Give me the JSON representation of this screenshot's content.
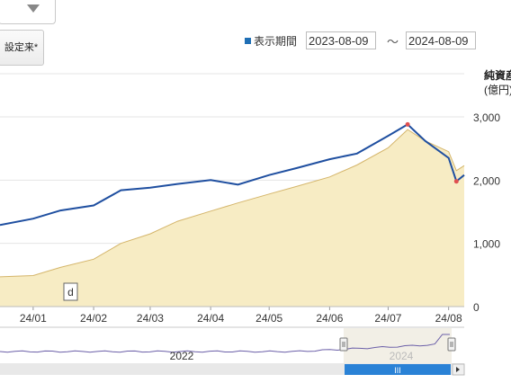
{
  "controls": {
    "dropdown_icon": "triangle-down-icon",
    "since_button": "設定来*",
    "range_label": "表示期間",
    "range_from": "2023-08-09",
    "range_tilde": "～",
    "range_to": "2024-08-09",
    "legend_color": "#1f6fb5"
  },
  "flag": {
    "label": "d"
  },
  "navigator": {
    "label_2022": "2022",
    "label_2024": "2024",
    "handle_grip": "III"
  },
  "chart_data": {
    "type": "line",
    "x": [
      "2023-12-15",
      "2024-01-01",
      "2024-01-15",
      "2024-02-01",
      "2024-02-15",
      "2024-03-01",
      "2024-03-15",
      "2024-04-01",
      "2024-04-15",
      "2024-05-01",
      "2024-05-15",
      "2024-06-01",
      "2024-06-15",
      "2024-07-01",
      "2024-07-11",
      "2024-07-20",
      "2024-08-01",
      "2024-08-05",
      "2024-08-09"
    ],
    "series": [
      {
        "axis": "left",
        "color": "#1f4fa0",
        "values": [
          null,
          null,
          null,
          null,
          null,
          null,
          null,
          null,
          null,
          null,
          null,
          null,
          null,
          null,
          null,
          null,
          null,
          null,
          null
        ]
      },
      {
        "name": "",
        "kind": "area",
        "axis": "right",
        "color": "#d4b56a",
        "fill": "#f7ecc4",
        "values": [
          470,
          490,
          620,
          750,
          1000,
          1150,
          1350,
          1510,
          1640,
          1780,
          1900,
          2050,
          2240,
          2510,
          2800,
          2620,
          2450,
          2150,
          2230
        ]
      }
    ],
    "nav_line_color": "#6b5fa8",
    "nav_fill": "#efebe0",
    "right_axis": {
      "title": "純資産",
      "unit": "(億円)",
      "ticks": [
        "0",
        "1,000",
        "2,000",
        "3,000"
      ],
      "ylim": [
        0,
        3000
      ]
    },
    "x_tick_labels": [
      "24/01",
      "24/02",
      "24/03",
      "24/04",
      "24/05",
      "24/06",
      "24/07",
      "24/08"
    ],
    "grid": true
  }
}
